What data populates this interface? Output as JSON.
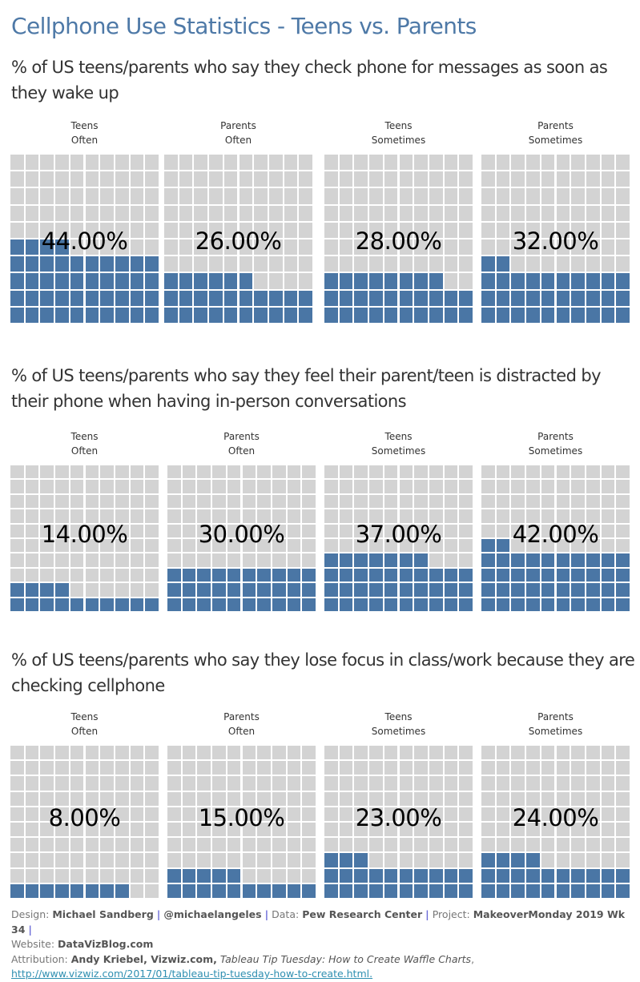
{
  "title": "Cellphone Use Statistics - Teens vs. Parents",
  "colors": {
    "filled": "#4a76a5",
    "empty": "#d3d3d3",
    "title": "#4e79a7"
  },
  "chart_data": [
    {
      "type": "waffle",
      "title": "% of US teens/parents who say they check phone for messages as soon as they wake up",
      "grid": [
        10,
        10
      ],
      "categories": [
        "Teens Often",
        "Parents Often",
        "Teens Sometimes",
        "Parents Sometimes"
      ],
      "panels": [
        {
          "group": "Teens",
          "frequency": "Often",
          "value": 44,
          "label": "44.00%"
        },
        {
          "group": "Parents",
          "frequency": "Often",
          "value": 26,
          "label": "26.00%"
        },
        {
          "group": "Teens",
          "frequency": "Sometimes",
          "value": 28,
          "label": "28.00%"
        },
        {
          "group": "Parents",
          "frequency": "Sometimes",
          "value": 32,
          "label": "32.00%"
        }
      ]
    },
    {
      "type": "waffle",
      "title": "% of US teens/parents who say they feel their parent/teen is distracted by their phone when having in-person conversations",
      "grid": [
        10,
        10
      ],
      "categories": [
        "Teens Often",
        "Parents Often",
        "Teens Sometimes",
        "Parents Sometimes"
      ],
      "panels": [
        {
          "group": "Teens",
          "frequency": "Often",
          "value": 14,
          "label": "14.00%"
        },
        {
          "group": "Parents",
          "frequency": "Often",
          "value": 30,
          "label": "30.00%"
        },
        {
          "group": "Teens",
          "frequency": "Sometimes",
          "value": 37,
          "label": "37.00%"
        },
        {
          "group": "Parents",
          "frequency": "Sometimes",
          "value": 42,
          "label": "42.00%"
        }
      ]
    },
    {
      "type": "waffle",
      "title": "% of US teens/parents who say they lose focus in class/work because they are checking cellphone",
      "grid": [
        10,
        10
      ],
      "categories": [
        "Teens Often",
        "Parents Often",
        "Teens Sometimes",
        "Parents Sometimes"
      ],
      "panels": [
        {
          "group": "Teens",
          "frequency": "Often",
          "value": 8,
          "label": "8.00%"
        },
        {
          "group": "Parents",
          "frequency": "Often",
          "value": 15,
          "label": "15.00%"
        },
        {
          "group": "Teens",
          "frequency": "Sometimes",
          "value": 23,
          "label": "23.00%"
        },
        {
          "group": "Parents",
          "frequency": "Sometimes",
          "value": 24,
          "label": "24.00%"
        }
      ]
    }
  ],
  "footer": {
    "design_label": "Design:",
    "design_value": "Michael Sandberg",
    "separator": "|",
    "handle": "@michaelangeles",
    "data_label": "Data:",
    "data_value": "Pew Research Center",
    "project_label": "Project:",
    "project_value": "MakeoverMonday 2019 Wk 34",
    "website_label": "Website:",
    "website_value": "DataVizBlog.com",
    "attribution_label": "Attribution:",
    "attribution_author": "Andy Kriebel, Vizwiz.com,",
    "attribution_title": "Tableau Tip Tuesday: How to Create Waffle Charts",
    "attribution_comma": ",",
    "attribution_link": "http://www.vizwiz.com/2017/01/tableau-tip-tuesday-how-to-create.html."
  }
}
